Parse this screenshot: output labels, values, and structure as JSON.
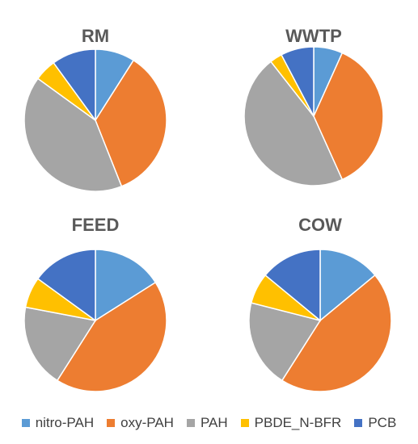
{
  "chart_data": [
    {
      "type": "pie",
      "title": "RM",
      "categories": [
        "nitro-PAH",
        "oxy-PAH",
        "PAH",
        "PBDE_N-BFR",
        "PCB"
      ],
      "values": [
        9,
        35,
        41,
        5,
        10
      ]
    },
    {
      "type": "pie",
      "title": "WWTP",
      "categories": [
        "nitro-PAH",
        "oxy-PAH",
        "PAH",
        "PBDE_N-BFR",
        "PCB"
      ],
      "values": [
        7,
        38,
        48,
        3,
        8
      ]
    },
    {
      "type": "pie",
      "title": "FEED",
      "categories": [
        "nitro-PAH",
        "oxy-PAH",
        "PAH",
        "PBDE_N-BFR",
        "PCB"
      ],
      "values": [
        16,
        43,
        19,
        7,
        15
      ]
    },
    {
      "type": "pie",
      "title": "COW",
      "categories": [
        "nitro-PAH",
        "oxy-PAH",
        "PAH",
        "PBDE_N-BFR",
        "PCB"
      ],
      "values": [
        14,
        45,
        20,
        7,
        14
      ]
    }
  ],
  "legend": {
    "position": "bottom",
    "items": [
      {
        "label": "nitro-PAH",
        "color": "#5B9BD5"
      },
      {
        "label": "oxy-PAH",
        "color": "#ED7D31"
      },
      {
        "label": "PAH",
        "color": "#A5A5A5"
      },
      {
        "label": "PBDE_N-BFR",
        "color": "#FFC000"
      },
      {
        "label": "PCB",
        "color": "#4472C4"
      }
    ]
  }
}
